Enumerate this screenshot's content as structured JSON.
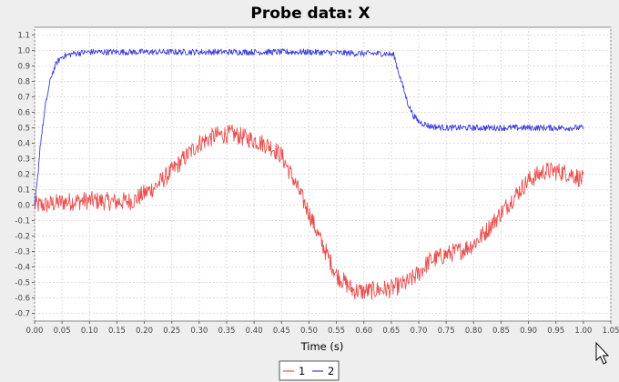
{
  "chart_data": {
    "type": "line",
    "title": "Probe data: X",
    "xlabel": "Time (s)",
    "ylabel": "",
    "xlim": [
      0.0,
      1.05
    ],
    "ylim": [
      -0.75,
      1.15
    ],
    "grid": true,
    "legend_position": "bottom",
    "x_ticks": [
      "0.00",
      "0.05",
      "0.10",
      "0.15",
      "0.20",
      "0.25",
      "0.30",
      "0.35",
      "0.40",
      "0.45",
      "0.50",
      "0.55",
      "0.60",
      "0.65",
      "0.70",
      "0.75",
      "0.80",
      "0.85",
      "0.90",
      "0.95",
      "1.00",
      "1.05"
    ],
    "y_ticks": [
      "1.1",
      "1.0",
      "0.9",
      "0.8",
      "0.7",
      "0.6",
      "0.5",
      "0.4",
      "0.3",
      "0.2",
      "0.1",
      "0.0",
      "-0.1",
      "-0.2",
      "-0.3",
      "-0.4",
      "-0.5",
      "-0.6",
      "-0.7"
    ],
    "series": [
      {
        "name": "1",
        "color": "#e8504f",
        "x": [
          0.0,
          0.02,
          0.05,
          0.1,
          0.15,
          0.18,
          0.22,
          0.25,
          0.28,
          0.3,
          0.33,
          0.36,
          0.4,
          0.43,
          0.45,
          0.47,
          0.5,
          0.52,
          0.55,
          0.58,
          0.6,
          0.62,
          0.65,
          0.68,
          0.7,
          0.72,
          0.75,
          0.78,
          0.8,
          0.82,
          0.85,
          0.88,
          0.9,
          0.93,
          0.95,
          0.98,
          1.0
        ],
        "y": [
          0.0,
          0.0,
          0.02,
          0.03,
          0.02,
          0.03,
          0.12,
          0.22,
          0.33,
          0.4,
          0.45,
          0.46,
          0.42,
          0.38,
          0.32,
          0.18,
          -0.05,
          -0.22,
          -0.45,
          -0.55,
          -0.56,
          -0.55,
          -0.54,
          -0.5,
          -0.44,
          -0.36,
          -0.32,
          -0.29,
          -0.25,
          -0.18,
          -0.05,
          0.08,
          0.16,
          0.22,
          0.22,
          0.2,
          0.16
        ],
        "noise": 0.06
      },
      {
        "name": "2",
        "color": "#3c3ce0",
        "x": [
          0.0,
          0.005,
          0.01,
          0.02,
          0.03,
          0.04,
          0.05,
          0.07,
          0.1,
          0.2,
          0.3,
          0.4,
          0.5,
          0.6,
          0.64,
          0.655,
          0.66,
          0.67,
          0.68,
          0.69,
          0.7,
          0.72,
          0.75,
          0.8,
          0.9,
          1.0
        ],
        "y": [
          0.0,
          0.15,
          0.38,
          0.65,
          0.83,
          0.92,
          0.96,
          0.98,
          0.99,
          0.99,
          0.99,
          0.99,
          0.99,
          0.98,
          0.98,
          0.97,
          0.9,
          0.78,
          0.66,
          0.58,
          0.54,
          0.51,
          0.5,
          0.5,
          0.5,
          0.5
        ],
        "noise": 0.02
      }
    ]
  }
}
